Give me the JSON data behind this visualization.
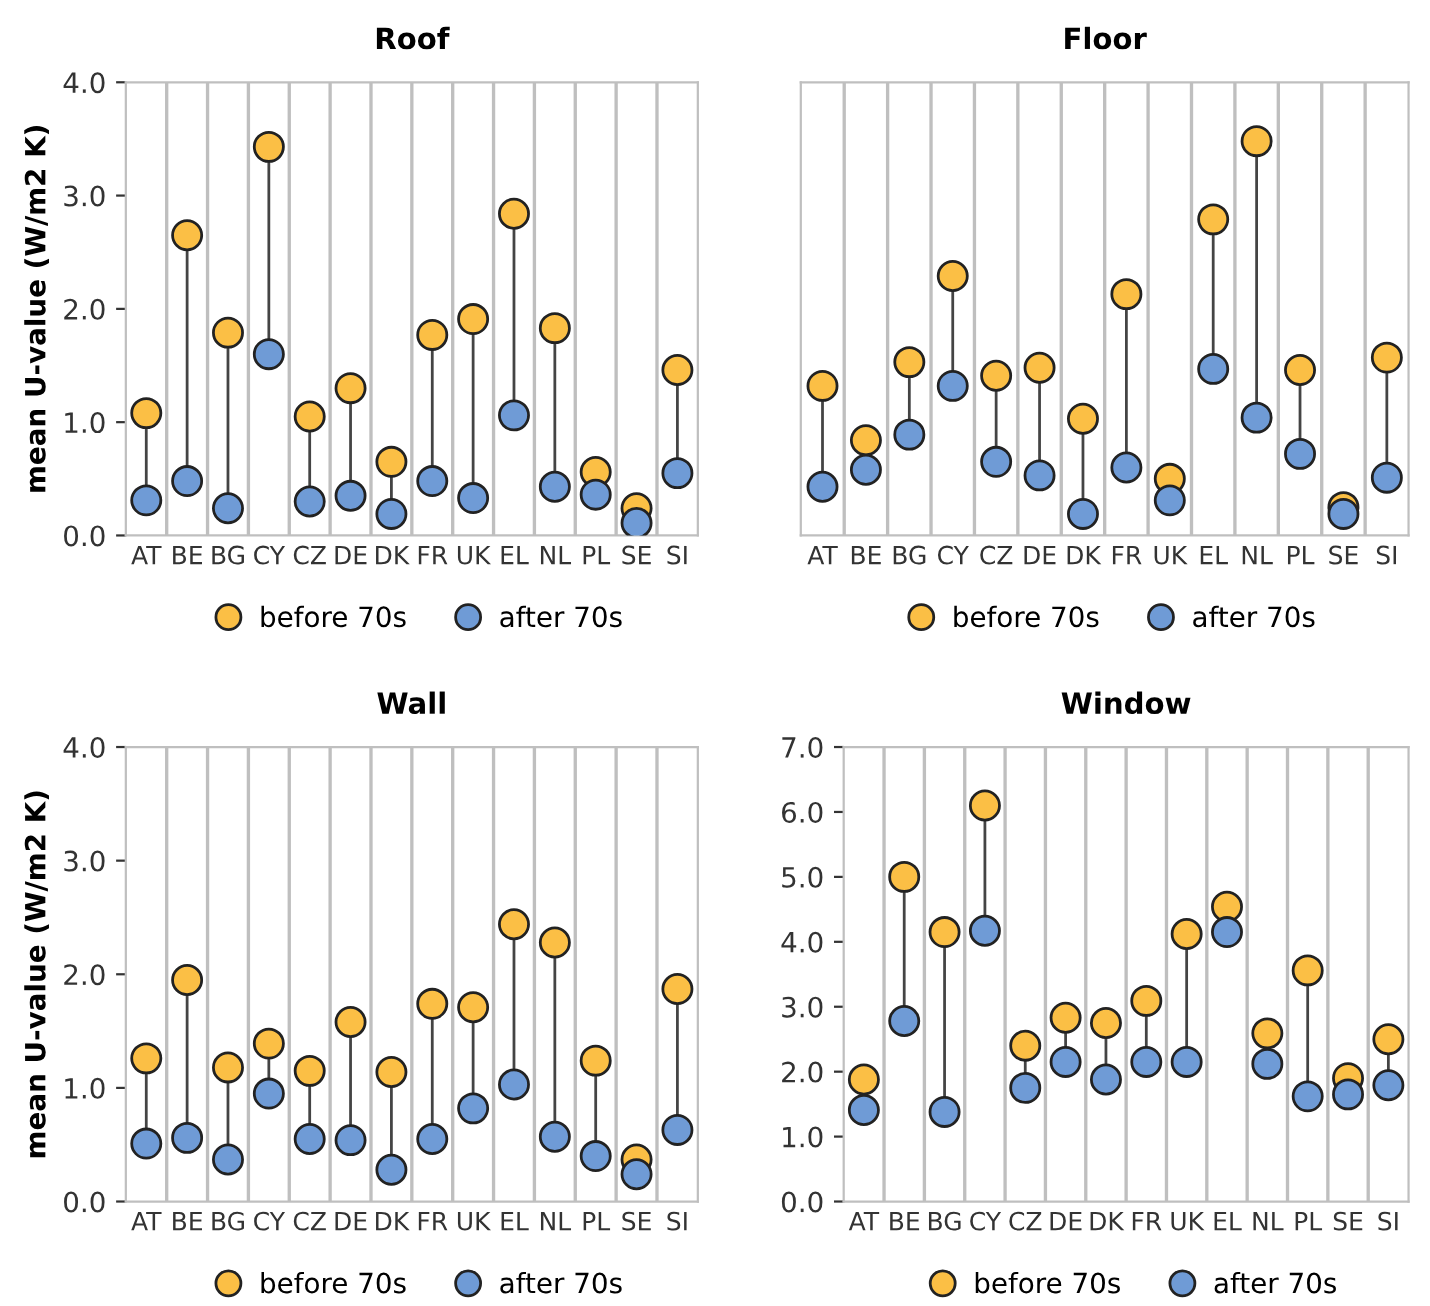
{
  "chart_data": [
    {
      "type": "scatter",
      "title": "Roof",
      "ylabel": "mean U-value (W/m2 K)",
      "categories": [
        "AT",
        "BE",
        "BG",
        "CY",
        "CZ",
        "DE",
        "DK",
        "FR",
        "UK",
        "EL",
        "NL",
        "PL",
        "SE",
        "SI"
      ],
      "ylim": [
        0,
        4
      ],
      "yticks": [
        {
          "value": 0,
          "label": "0.0"
        },
        {
          "value": 1,
          "label": "1.0"
        },
        {
          "value": 2,
          "label": "2.0"
        },
        {
          "value": 3,
          "label": "3.0"
        },
        {
          "value": 4,
          "label": "4.0"
        }
      ],
      "grid": "x",
      "legend": "bottom",
      "marker": "circle",
      "series": [
        {
          "name": "before 70s",
          "color": "#fbbf45",
          "values": [
            1.08,
            2.65,
            1.79,
            3.43,
            1.05,
            1.3,
            0.65,
            1.77,
            1.91,
            2.84,
            1.83,
            0.56,
            0.24,
            1.46
          ]
        },
        {
          "name": "after 70s",
          "color": "#6f9bd6",
          "values": [
            0.31,
            0.48,
            0.24,
            1.6,
            0.3,
            0.35,
            0.19,
            0.48,
            0.33,
            1.06,
            0.43,
            0.36,
            0.11,
            0.55
          ]
        }
      ]
    },
    {
      "type": "scatter",
      "title": "Floor",
      "categories": [
        "AT",
        "BE",
        "BG",
        "CY",
        "CZ",
        "DE",
        "DK",
        "FR",
        "UK",
        "EL",
        "NL",
        "PL",
        "SE",
        "SI"
      ],
      "ylim": [
        0,
        4
      ],
      "tick_labels": "x",
      "grid": "x",
      "legend": "bottom",
      "marker": "circle",
      "series": [
        {
          "name": "before 70s",
          "color": "#fbbf45",
          "values": [
            1.32,
            0.84,
            1.53,
            2.29,
            1.41,
            1.48,
            1.03,
            2.13,
            0.5,
            2.79,
            3.48,
            1.46,
            0.25,
            1.57
          ]
        },
        {
          "name": "after 70s",
          "color": "#6f9bd6",
          "values": [
            0.43,
            0.58,
            0.89,
            1.32,
            0.65,
            0.53,
            0.19,
            0.6,
            0.31,
            1.47,
            1.04,
            0.72,
            0.19,
            0.51
          ]
        }
      ]
    },
    {
      "type": "scatter",
      "title": "Wall",
      "ylabel": "mean U-value (W/m2 K)",
      "categories": [
        "AT",
        "BE",
        "BG",
        "CY",
        "CZ",
        "DE",
        "DK",
        "FR",
        "UK",
        "EL",
        "NL",
        "PL",
        "SE",
        "SI"
      ],
      "ylim": [
        0,
        4
      ],
      "yticks": [
        {
          "value": 0,
          "label": "0.0"
        },
        {
          "value": 1,
          "label": "1.0"
        },
        {
          "value": 2,
          "label": "2.0"
        },
        {
          "value": 3,
          "label": "3.0"
        },
        {
          "value": 4,
          "label": "4.0"
        }
      ],
      "grid": "x",
      "legend": "bottom",
      "marker": "circle",
      "series": [
        {
          "name": "before 70s",
          "color": "#fbbf45",
          "values": [
            1.26,
            1.95,
            1.18,
            1.39,
            1.15,
            1.58,
            1.14,
            1.74,
            1.71,
            2.44,
            2.28,
            1.24,
            0.37,
            1.87
          ]
        },
        {
          "name": "after 70s",
          "color": "#6f9bd6",
          "values": [
            0.51,
            0.56,
            0.37,
            0.95,
            0.55,
            0.54,
            0.28,
            0.55,
            0.82,
            1.03,
            0.57,
            0.4,
            0.24,
            0.63
          ]
        }
      ]
    },
    {
      "type": "scatter",
      "title": "Window",
      "categories": [
        "AT",
        "BE",
        "BG",
        "CY",
        "CZ",
        "DE",
        "DK",
        "FR",
        "UK",
        "EL",
        "NL",
        "PL",
        "SE",
        "SI"
      ],
      "ylim": [
        0,
        7
      ],
      "yticks": [
        {
          "value": 0,
          "label": "0.0"
        },
        {
          "value": 1,
          "label": "1.0"
        },
        {
          "value": 2,
          "label": "2.0"
        },
        {
          "value": 3,
          "label": "3.0"
        },
        {
          "value": 4,
          "label": "4.0"
        },
        {
          "value": 5,
          "label": "5.0"
        },
        {
          "value": 6,
          "label": "6.0"
        },
        {
          "value": 7,
          "label": "7.0"
        }
      ],
      "grid": "x",
      "legend": "bottom",
      "marker": "circle",
      "series": [
        {
          "name": "before 70s",
          "color": "#fbbf45",
          "values": [
            1.88,
            5.0,
            4.15,
            6.1,
            2.4,
            2.83,
            2.75,
            3.09,
            4.12,
            4.54,
            2.59,
            3.56,
            1.9,
            2.5
          ]
        },
        {
          "name": "after 70s",
          "color": "#6f9bd6",
          "values": [
            1.41,
            2.78,
            1.38,
            4.17,
            1.75,
            2.15,
            1.88,
            2.15,
            2.15,
            4.15,
            2.12,
            1.62,
            1.65,
            1.79
          ]
        }
      ]
    }
  ]
}
